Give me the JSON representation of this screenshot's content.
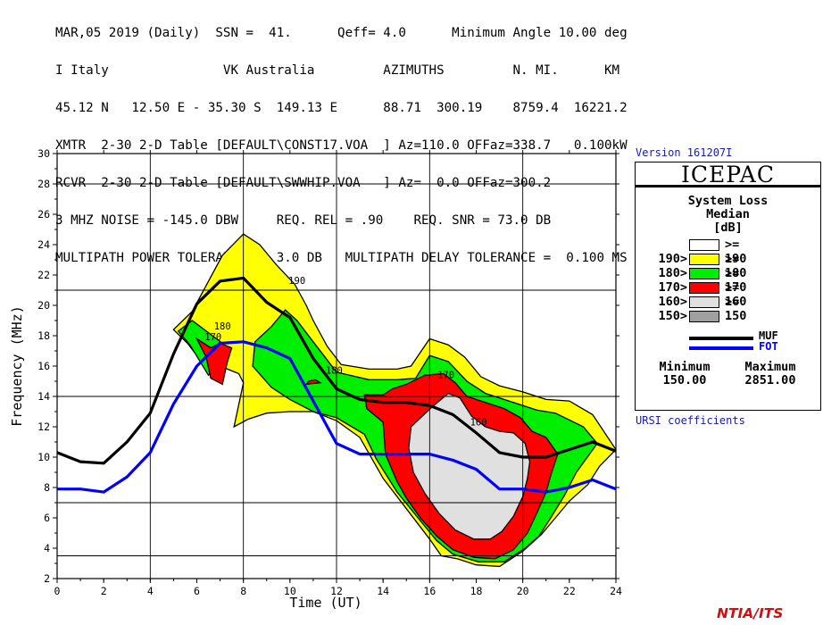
{
  "header": {
    "lines": [
      "MAR,05 2019 (Daily)  SSN =  41.      Qeff= 4.0      Minimum Angle 10.00 deg",
      "I Italy               VK Australia         AZIMUTHS         N. MI.      KM",
      "45.12 N   12.50 E - 35.30 S  149.13 E      88.71  300.19    8759.4  16221.2",
      "XMTR  2-30 2-D Table [DEFAULT\\CONST17.VOA  ] Az=110.0 OFFaz=338.7   0.100kW",
      "RCVR  2-30 2-D Table [DEFAULT\\SWWHIP.VOA   ] Az=  0.0 OFFaz=300.2",
      "3 MHZ NOISE = -145.0 DBW     REQ. REL = .90    REQ. SNR = 73.0 DB",
      "MULTIPATH POWER TOLERANCE =  3.0 DB   MULTIPATH DELAY TOLERANCE =  0.100 MS"
    ]
  },
  "version": "Version 161207I",
  "legend": {
    "model": "ICEPAC",
    "title_line1": "System Loss",
    "title_line2": "Median",
    "title_line3": "[dB]",
    "bins": [
      {
        "lo": "",
        "hi": ">= 190",
        "color": "#ffffff"
      },
      {
        "lo": "190>",
        "hi": ">= 180",
        "color": "#ffff00"
      },
      {
        "lo": "180>",
        "hi": ">= 170",
        "color": "#00ee00"
      },
      {
        "lo": "170>",
        "hi": ">= 160",
        "color": "#ff0000"
      },
      {
        "lo": "160>",
        "hi": ">= 150",
        "color": "#e0e0e0"
      },
      {
        "lo": "150>",
        "hi": "",
        "color": "#a0a0a0"
      }
    ],
    "muf_label": "MUF",
    "fot_label": "FOT",
    "minimum_label": "Minimum",
    "maximum_label": "Maximum",
    "minimum_value": "150.00",
    "maximum_value": "2851.00"
  },
  "ursi": "URSI coefficients",
  "logo": "NTIA/ITS",
  "chart_data": {
    "type": "contour",
    "xlabel": "Time (UT)",
    "ylabel": "Frequency (MHz)",
    "xlim": [
      0,
      24
    ],
    "ylim": [
      2,
      30
    ],
    "xticks": [
      0,
      2,
      4,
      6,
      8,
      10,
      12,
      14,
      16,
      18,
      20,
      22,
      24
    ],
    "yticks": [
      2,
      4,
      6,
      8,
      10,
      12,
      14,
      16,
      18,
      20,
      22,
      24,
      26,
      28,
      30
    ],
    "vgrid": [
      4,
      8,
      12,
      16,
      20
    ],
    "hgrid": [
      3.5,
      7,
      14,
      21,
      28
    ],
    "contour_labels": [
      {
        "text": "190",
        "x": 10.3,
        "y": 21.4
      },
      {
        "text": "180",
        "x": 7.1,
        "y": 18.4
      },
      {
        "text": "170",
        "x": 6.7,
        "y": 17.7
      },
      {
        "text": "180",
        "x": 11.9,
        "y": 15.5
      },
      {
        "text": "170",
        "x": 16.7,
        "y": 15.2
      },
      {
        "text": "160",
        "x": 18.1,
        "y": 12.1
      }
    ],
    "series": [
      {
        "name": "MUF",
        "color": "#000000",
        "x": [
          0,
          1,
          2,
          3,
          4,
          5,
          6,
          7,
          8,
          9,
          10,
          11,
          12,
          13,
          14,
          15,
          16,
          17,
          18,
          19,
          20,
          21,
          22,
          23,
          24
        ],
        "y": [
          10.3,
          9.7,
          9.6,
          11.0,
          12.9,
          16.8,
          20.1,
          21.6,
          21.8,
          20.2,
          19.2,
          16.5,
          14.5,
          13.8,
          13.6,
          13.6,
          13.4,
          12.8,
          11.6,
          10.3,
          10.0,
          10.0,
          10.5,
          11.0,
          10.4
        ]
      },
      {
        "name": "FOT",
        "color": "#0000ff",
        "x": [
          0,
          1,
          2,
          3,
          4,
          5,
          6,
          7,
          8,
          9,
          10,
          11,
          12,
          13,
          14,
          15,
          16,
          17,
          18,
          19,
          20,
          21,
          22,
          23,
          24
        ],
        "y": [
          7.9,
          7.9,
          7.7,
          8.7,
          10.3,
          13.5,
          16.0,
          17.5,
          17.6,
          17.2,
          16.5,
          13.7,
          10.9,
          10.2,
          10.2,
          10.2,
          10.2,
          9.8,
          9.2,
          7.9,
          7.9,
          7.7,
          8.0,
          8.5,
          7.9
        ]
      }
    ],
    "regions": [
      {
        "level": ">= 190",
        "color": "#ffffff"
      },
      {
        "level": "190-180",
        "color": "#ffff00",
        "polygons": [
          [
            [
              5,
              18.4
            ],
            [
              5.8,
              19.6
            ],
            [
              6.4,
              21.3
            ],
            [
              7.1,
              23.3
            ],
            [
              8,
              24.7
            ],
            [
              8.7,
              24.0
            ],
            [
              9.4,
              22.7
            ],
            [
              10.2,
              21.4
            ],
            [
              10.7,
              20.0
            ],
            [
              11.0,
              19.0
            ],
            [
              11.6,
              17.3
            ],
            [
              12.2,
              16.1
            ],
            [
              13.4,
              15.8
            ],
            [
              14.6,
              15.8
            ],
            [
              15.2,
              16.0
            ],
            [
              16,
              17.8
            ],
            [
              16.8,
              17.4
            ],
            [
              17.5,
              16.6
            ],
            [
              18.2,
              15.3
            ],
            [
              19,
              14.7
            ],
            [
              20,
              14.3
            ],
            [
              21,
              13.8
            ],
            [
              22,
              13.7
            ],
            [
              23,
              12.8
            ],
            [
              24,
              10.5
            ],
            [
              23.3,
              9.4
            ],
            [
              22.8,
              8.2
            ],
            [
              22.0,
              7.1
            ],
            [
              21.4,
              6.0
            ],
            [
              20.8,
              4.9
            ],
            [
              20,
              3.8
            ],
            [
              19,
              2.8
            ],
            [
              18,
              2.9
            ],
            [
              17.2,
              3.3
            ],
            [
              16.5,
              3.5
            ],
            [
              16,
              4.6
            ],
            [
              15.0,
              6.6
            ],
            [
              14.0,
              8.6
            ],
            [
              13.0,
              11.3
            ],
            [
              12.0,
              12.4
            ],
            [
              11.0,
              13.0
            ],
            [
              10.0,
              13.0
            ],
            [
              9.0,
              12.9
            ],
            [
              8.2,
              12.5
            ],
            [
              7.6,
              12.0
            ],
            [
              8.0,
              14.9
            ],
            [
              7.8,
              15.5
            ],
            [
              7.0,
              16.0
            ],
            [
              6.2,
              16.3
            ],
            [
              5.6,
              17.5
            ],
            [
              5,
              18.4
            ]
          ]
        ]
      },
      {
        "level": "180-170",
        "color": "#00ee00",
        "polygons": [
          [
            [
              5.2,
              18.3
            ],
            [
              5.8,
              19.0
            ],
            [
              6.5,
              18.2
            ],
            [
              7.1,
              17.5
            ],
            [
              7.0,
              16.8
            ],
            [
              6.9,
              16.0
            ],
            [
              6.5,
              15.4
            ],
            [
              6.1,
              16.4
            ],
            [
              5.7,
              17.4
            ],
            [
              5.2,
              18.3
            ]
          ],
          [
            [
              8.4,
              16.0
            ],
            [
              8.5,
              17.6
            ],
            [
              9.2,
              18.6
            ],
            [
              9.8,
              19.7
            ],
            [
              10.3,
              19.0
            ],
            [
              11.0,
              17.6
            ],
            [
              11.5,
              16.6
            ],
            [
              12.0,
              15.6
            ],
            [
              13.4,
              15.1
            ],
            [
              14.6,
              15.1
            ],
            [
              15.4,
              15.2
            ],
            [
              16,
              16.7
            ],
            [
              16.8,
              16.3
            ],
            [
              17.6,
              15.0
            ],
            [
              18.4,
              14.2
            ],
            [
              19.6,
              13.6
            ],
            [
              20.6,
              13.1
            ],
            [
              21.4,
              12.9
            ],
            [
              22.6,
              12.0
            ],
            [
              23.2,
              10.9
            ],
            [
              22.3,
              9.0
            ],
            [
              21.8,
              7.5
            ],
            [
              21.2,
              6.0
            ],
            [
              20.7,
              4.8
            ],
            [
              20.1,
              4.0
            ],
            [
              19.2,
              3.1
            ],
            [
              18.1,
              3.1
            ],
            [
              17.0,
              3.6
            ],
            [
              16.3,
              4.5
            ],
            [
              15.5,
              6.0
            ],
            [
              14.6,
              7.7
            ],
            [
              13.7,
              9.9
            ],
            [
              13.2,
              11.5
            ],
            [
              12.0,
              12.6
            ],
            [
              11.0,
              13.0
            ],
            [
              10.0,
              13.8
            ],
            [
              9.2,
              14.6
            ],
            [
              8.4,
              16.0
            ]
          ]
        ]
      },
      {
        "level": "170-160",
        "color": "#ff0000",
        "polygons": [
          [
            [
              6.0,
              17.8
            ],
            [
              6.4,
              16.6
            ],
            [
              6.6,
              15.2
            ],
            [
              7.1,
              14.8
            ],
            [
              7.3,
              16.2
            ],
            [
              7.5,
              17.2
            ],
            [
              7.0,
              17.5
            ],
            [
              6.6,
              17.2
            ],
            [
              6.0,
              17.8
            ]
          ],
          [
            [
              10.7,
              14.8
            ],
            [
              11.3,
              14.9
            ],
            [
              11.1,
              15.1
            ],
            [
              10.8,
              15.0
            ],
            [
              10.7,
              14.8
            ]
          ],
          [
            [
              13.2,
              14.1
            ],
            [
              14.0,
              14.1
            ],
            [
              14.4,
              14.5
            ],
            [
              15.0,
              14.8
            ],
            [
              15.8,
              15.4
            ],
            [
              16.6,
              15.5
            ],
            [
              17.1,
              14.9
            ],
            [
              17.6,
              14.0
            ],
            [
              18.4,
              13.6
            ],
            [
              19.2,
              13.2
            ],
            [
              19.9,
              12.6
            ],
            [
              20.4,
              11.7
            ],
            [
              21.0,
              11.3
            ],
            [
              21.5,
              10.2
            ],
            [
              21.2,
              8.8
            ],
            [
              21.0,
              7.7
            ],
            [
              20.6,
              6.3
            ],
            [
              20.2,
              5.0
            ],
            [
              19.6,
              3.9
            ],
            [
              18.8,
              3.3
            ],
            [
              17.9,
              3.4
            ],
            [
              17.0,
              3.9
            ],
            [
              16.3,
              4.8
            ],
            [
              15.6,
              6.0
            ],
            [
              15.0,
              7.3
            ],
            [
              14.6,
              8.4
            ],
            [
              14.1,
              10.2
            ],
            [
              14.0,
              12.3
            ],
            [
              13.3,
              13.2
            ],
            [
              13.2,
              14.1
            ]
          ]
        ]
      },
      {
        "level": "160-150",
        "color": "#e0e0e0",
        "polygons": [
          [
            [
              15.2,
              12.0
            ],
            [
              16.1,
              13.3
            ],
            [
              16.8,
              14.2
            ],
            [
              17.3,
              13.9
            ],
            [
              17.8,
              12.7
            ],
            [
              18.4,
              12.0
            ],
            [
              19.0,
              11.7
            ],
            [
              19.6,
              11.6
            ],
            [
              20.1,
              10.9
            ],
            [
              20.3,
              9.7
            ],
            [
              20.2,
              8.6
            ],
            [
              20.0,
              7.4
            ],
            [
              19.6,
              6.1
            ],
            [
              19.1,
              5.1
            ],
            [
              18.6,
              4.6
            ],
            [
              17.9,
              4.6
            ],
            [
              17.1,
              5.2
            ],
            [
              16.4,
              6.3
            ],
            [
              15.8,
              7.6
            ],
            [
              15.3,
              9.0
            ],
            [
              15.1,
              10.6
            ],
            [
              15.2,
              12.0
            ]
          ]
        ]
      }
    ]
  }
}
